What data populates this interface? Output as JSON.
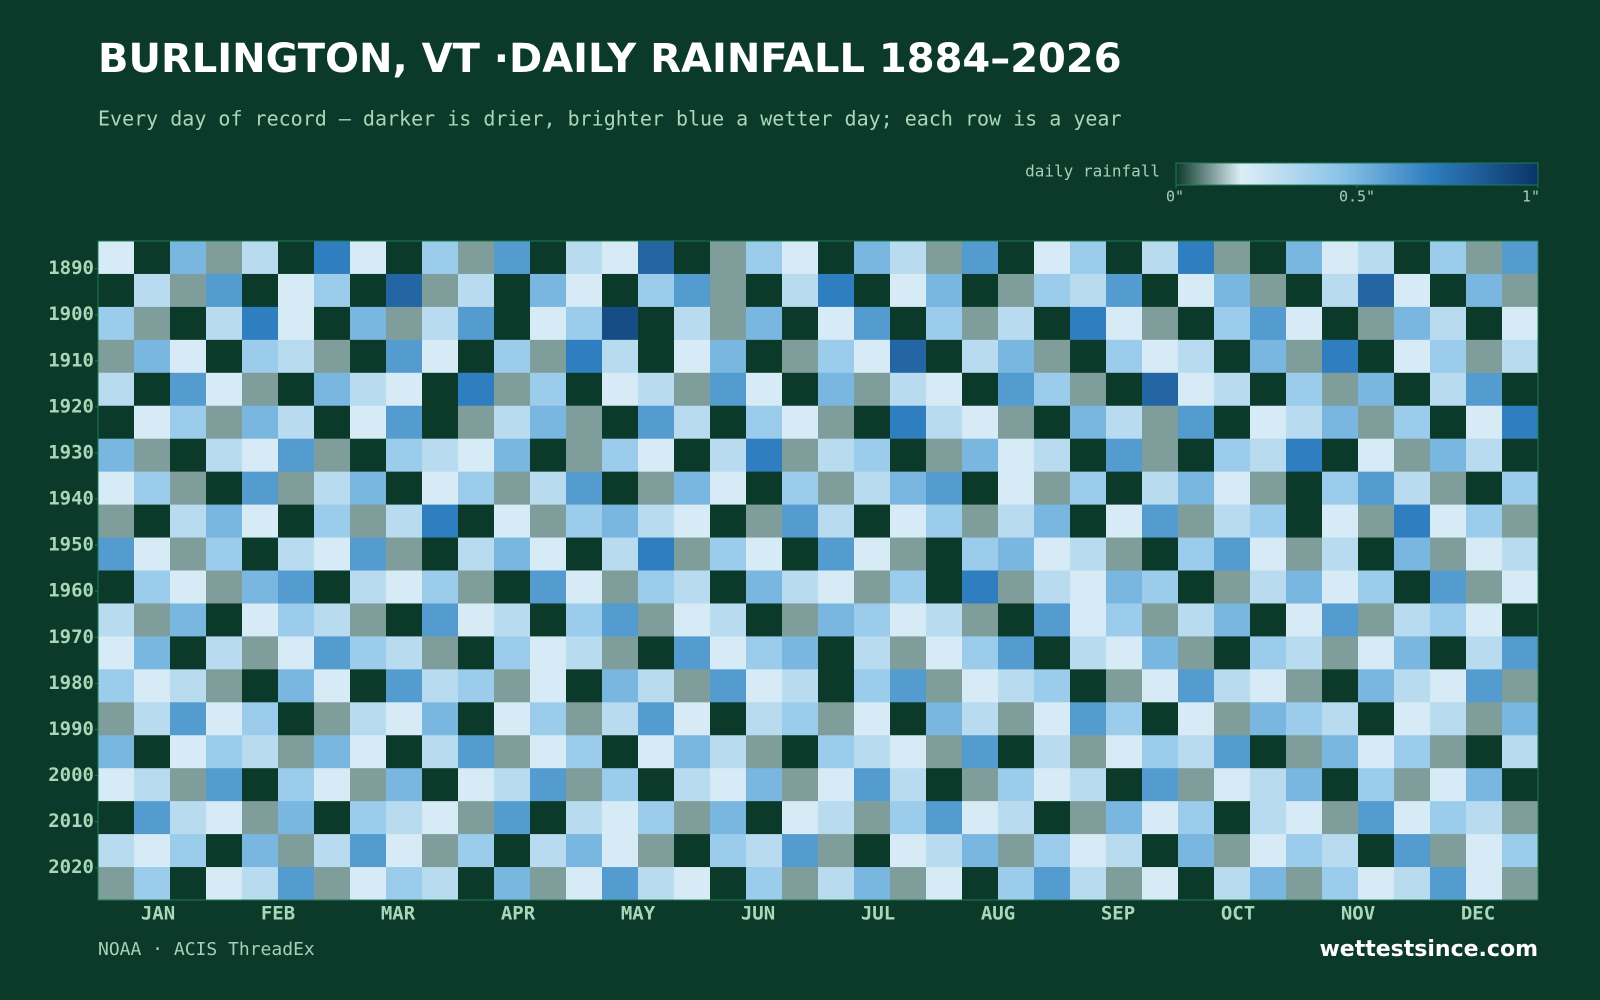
{
  "chart_data": {
    "type": "heatmap",
    "title": "BURLINGTON, VT ·DAILY RAINFALL 1884–2026",
    "subtitle": "Every day of record — darker is drier, brighter blue a wetter day; each row is a year",
    "legend_label": "daily rainfall",
    "colorscale": [
      [
        0,
        "#0b3a2a"
      ],
      [
        0.18,
        "#dceef6"
      ],
      [
        0.45,
        "#8cc4e8"
      ],
      [
        0.7,
        "#2f7fc0"
      ],
      [
        1,
        "#0a3468"
      ]
    ],
    "clim": [
      0,
      1
    ],
    "cticks": [
      {
        "value": 0,
        "label": "0\""
      },
      {
        "value": 0.5,
        "label": "0.5\""
      },
      {
        "value": 1,
        "label": "1\""
      }
    ],
    "categories": [
      "JAN",
      "FEB",
      "MAR",
      "APR",
      "MAY",
      "JUN",
      "JUL",
      "AUG",
      "SEP",
      "OCT",
      "NOV",
      "DEC"
    ],
    "ylim": [
      1884,
      2027
    ],
    "yticks": [
      1890,
      1900,
      1910,
      1920,
      1930,
      1940,
      1950,
      1960,
      1970,
      1980,
      1990,
      2000,
      2010,
      2020
    ],
    "values": [
      [
        0.2,
        0,
        0.5,
        0.1,
        0.3,
        0,
        0.7,
        0.2,
        0,
        0.4,
        0.1,
        0.6,
        0,
        0.3,
        0.2,
        0.8,
        0,
        0.1,
        0.4,
        0.2,
        0,
        0.5,
        0.3,
        0.1,
        0.6,
        0,
        0.2,
        0.4,
        0,
        0.3,
        0.7,
        0.1,
        0,
        0.5,
        0.2,
        0.3,
        0,
        0.4,
        0.1,
        0.6
      ],
      [
        0,
        0.3,
        0.1,
        0.6,
        0,
        0.2,
        0.4,
        0,
        0.8,
        0.1,
        0.3,
        0,
        0.5,
        0.2,
        0,
        0.4,
        0.6,
        0.1,
        0,
        0.3,
        0.7,
        0,
        0.2,
        0.5,
        0,
        0.1,
        0.4,
        0.3,
        0.6,
        0,
        0.2,
        0.5,
        0.1,
        0,
        0.3,
        0.8,
        0.2,
        0,
        0.5,
        0.1
      ],
      [
        0.4,
        0.1,
        0,
        0.3,
        0.7,
        0.2,
        0,
        0.5,
        0.1,
        0.3,
        0.6,
        0,
        0.2,
        0.4,
        0.9,
        0,
        0.3,
        0.1,
        0.5,
        0,
        0.2,
        0.6,
        0,
        0.4,
        0.1,
        0.3,
        0,
        0.7,
        0.2,
        0.1,
        0,
        0.4,
        0.6,
        0.2,
        0,
        0.1,
        0.5,
        0.3,
        0,
        0.2
      ],
      [
        0.1,
        0.5,
        0.2,
        0,
        0.4,
        0.3,
        0.1,
        0,
        0.6,
        0.2,
        0,
        0.4,
        0.1,
        0.7,
        0.3,
        0,
        0.2,
        0.5,
        0,
        0.1,
        0.4,
        0.2,
        0.8,
        0,
        0.3,
        0.5,
        0.1,
        0,
        0.4,
        0.2,
        0.3,
        0,
        0.5,
        0.1,
        0.7,
        0,
        0.2,
        0.4,
        0.1,
        0.3
      ],
      [
        0.3,
        0,
        0.6,
        0.2,
        0.1,
        0,
        0.5,
        0.3,
        0.2,
        0,
        0.7,
        0.1,
        0.4,
        0,
        0.2,
        0.3,
        0.1,
        0.6,
        0.2,
        0,
        0.5,
        0.1,
        0.3,
        0.2,
        0,
        0.6,
        0.4,
        0.1,
        0,
        0.8,
        0.2,
        0.3,
        0,
        0.4,
        0.1,
        0.5,
        0,
        0.3,
        0.6,
        0
      ],
      [
        0,
        0.2,
        0.4,
        0.1,
        0.5,
        0.3,
        0,
        0.2,
        0.6,
        0,
        0.1,
        0.3,
        0.5,
        0.1,
        0,
        0.6,
        0.3,
        0,
        0.4,
        0.2,
        0.1,
        0,
        0.7,
        0.3,
        0.2,
        0.1,
        0,
        0.5,
        0.3,
        0.1,
        0.6,
        0,
        0.2,
        0.3,
        0.5,
        0.1,
        0.4,
        0,
        0.2,
        0.7
      ],
      [
        0.5,
        0.1,
        0,
        0.3,
        0.2,
        0.6,
        0.1,
        0,
        0.4,
        0.3,
        0.2,
        0.5,
        0,
        0.1,
        0.4,
        0.2,
        0,
        0.3,
        0.7,
        0.1,
        0.3,
        0.4,
        0,
        0.1,
        0.5,
        0.2,
        0.3,
        0,
        0.6,
        0.1,
        0,
        0.4,
        0.3,
        0.7,
        0,
        0.2,
        0.1,
        0.5,
        0.3,
        0
      ],
      [
        0.2,
        0.4,
        0.1,
        0,
        0.6,
        0.1,
        0.3,
        0.5,
        0,
        0.2,
        0.4,
        0.1,
        0.3,
        0.6,
        0,
        0.1,
        0.5,
        0.2,
        0,
        0.4,
        0.1,
        0.3,
        0.5,
        0.6,
        0,
        0.2,
        0.1,
        0.4,
        0,
        0.3,
        0.5,
        0.2,
        0.1,
        0,
        0.4,
        0.6,
        0.3,
        0.1,
        0,
        0.4
      ],
      [
        0.1,
        0,
        0.3,
        0.5,
        0.2,
        0,
        0.4,
        0.1,
        0.3,
        0.7,
        0,
        0.2,
        0.1,
        0.4,
        0.5,
        0.3,
        0.2,
        0,
        0.1,
        0.6,
        0.3,
        0,
        0.2,
        0.4,
        0.1,
        0.3,
        0.5,
        0,
        0.2,
        0.6,
        0.1,
        0.3,
        0.4,
        0,
        0.2,
        0.1,
        0.7,
        0.2,
        0.4,
        0.1
      ],
      [
        0.6,
        0.2,
        0.1,
        0.4,
        0,
        0.3,
        0.2,
        0.6,
        0.1,
        0,
        0.3,
        0.5,
        0.2,
        0,
        0.3,
        0.7,
        0.1,
        0.4,
        0.2,
        0,
        0.6,
        0.2,
        0.1,
        0,
        0.4,
        0.5,
        0.2,
        0.3,
        0.1,
        0,
        0.4,
        0.6,
        0.2,
        0.1,
        0.3,
        0,
        0.5,
        0.1,
        0.2,
        0.3
      ],
      [
        0,
        0.4,
        0.2,
        0.1,
        0.5,
        0.6,
        0,
        0.3,
        0.2,
        0.4,
        0.1,
        0,
        0.6,
        0.2,
        0.1,
        0.4,
        0.3,
        0,
        0.5,
        0.3,
        0.2,
        0.1,
        0.4,
        0,
        0.7,
        0.1,
        0.3,
        0.2,
        0.5,
        0.4,
        0,
        0.1,
        0.3,
        0.5,
        0.2,
        0.4,
        0,
        0.6,
        0.1,
        0.2
      ],
      [
        0.3,
        0.1,
        0.5,
        0,
        0.2,
        0.4,
        0.3,
        0.1,
        0,
        0.6,
        0.2,
        0.3,
        0,
        0.4,
        0.6,
        0.1,
        0.2,
        0.3,
        0,
        0.1,
        0.5,
        0.4,
        0.2,
        0.3,
        0.1,
        0,
        0.6,
        0.2,
        0.4,
        0.1,
        0.3,
        0.5,
        0,
        0.2,
        0.6,
        0.1,
        0.3,
        0.4,
        0.2,
        0
      ],
      [
        0.2,
        0.5,
        0,
        0.3,
        0.1,
        0.2,
        0.6,
        0.4,
        0.3,
        0.1,
        0,
        0.4,
        0.2,
        0.3,
        0.1,
        0,
        0.6,
        0.2,
        0.4,
        0.5,
        0,
        0.3,
        0.1,
        0.2,
        0.4,
        0.6,
        0,
        0.3,
        0.2,
        0.5,
        0.1,
        0,
        0.4,
        0.3,
        0.1,
        0.2,
        0.5,
        0,
        0.3,
        0.6
      ],
      [
        0.4,
        0.2,
        0.3,
        0.1,
        0,
        0.5,
        0.2,
        0,
        0.6,
        0.3,
        0.4,
        0.1,
        0.2,
        0,
        0.5,
        0.3,
        0.1,
        0.6,
        0.2,
        0.3,
        0,
        0.4,
        0.6,
        0.1,
        0.2,
        0.3,
        0.4,
        0,
        0.1,
        0.2,
        0.6,
        0.3,
        0.2,
        0.1,
        0,
        0.5,
        0.3,
        0.2,
        0.6,
        0.1
      ],
      [
        0.1,
        0.3,
        0.6,
        0.2,
        0.4,
        0,
        0.1,
        0.3,
        0.2,
        0.5,
        0,
        0.2,
        0.4,
        0.1,
        0.3,
        0.6,
        0.2,
        0,
        0.3,
        0.4,
        0.1,
        0.2,
        0,
        0.5,
        0.3,
        0.1,
        0.2,
        0.6,
        0.4,
        0,
        0.2,
        0.1,
        0.5,
        0.4,
        0.3,
        0,
        0.2,
        0.3,
        0.1,
        0.5
      ],
      [
        0.5,
        0,
        0.2,
        0.4,
        0.3,
        0.1,
        0.5,
        0.2,
        0,
        0.3,
        0.6,
        0.1,
        0.2,
        0.4,
        0,
        0.2,
        0.5,
        0.3,
        0.1,
        0,
        0.4,
        0.3,
        0.2,
        0.1,
        0.6,
        0,
        0.3,
        0.1,
        0.2,
        0.4,
        0.3,
        0.6,
        0,
        0.1,
        0.5,
        0.2,
        0.4,
        0.1,
        0,
        0.3
      ],
      [
        0.2,
        0.3,
        0.1,
        0.6,
        0,
        0.4,
        0.2,
        0.1,
        0.5,
        0,
        0.2,
        0.3,
        0.6,
        0.1,
        0.4,
        0,
        0.3,
        0.2,
        0.5,
        0.1,
        0.2,
        0.6,
        0.3,
        0,
        0.1,
        0.4,
        0.2,
        0.3,
        0,
        0.6,
        0.1,
        0.2,
        0.3,
        0.5,
        0,
        0.4,
        0.1,
        0.2,
        0.5,
        0
      ],
      [
        0,
        0.6,
        0.3,
        0.2,
        0.1,
        0.5,
        0,
        0.4,
        0.3,
        0.2,
        0.1,
        0.6,
        0,
        0.3,
        0.2,
        0.4,
        0.1,
        0.5,
        0,
        0.2,
        0.3,
        0.1,
        0.4,
        0.6,
        0.2,
        0.3,
        0,
        0.1,
        0.5,
        0.2,
        0.4,
        0,
        0.3,
        0.2,
        0.1,
        0.6,
        0.2,
        0.4,
        0.3,
        0.1
      ],
      [
        0.3,
        0.2,
        0.4,
        0,
        0.5,
        0.1,
        0.3,
        0.6,
        0.2,
        0.1,
        0.4,
        0,
        0.3,
        0.5,
        0.2,
        0.1,
        0,
        0.4,
        0.3,
        0.6,
        0.1,
        0,
        0.2,
        0.3,
        0.5,
        0.1,
        0.4,
        0.2,
        0.3,
        0,
        0.5,
        0.1,
        0.2,
        0.4,
        0.3,
        0,
        0.6,
        0.1,
        0.2,
        0.4
      ],
      [
        0.1,
        0.4,
        0,
        0.2,
        0.3,
        0.6,
        0.1,
        0.2,
        0.4,
        0.3,
        0,
        0.5,
        0.1,
        0.2,
        0.6,
        0.3,
        0.2,
        0,
        0.4,
        0.1,
        0.3,
        0.5,
        0.1,
        0.2,
        0,
        0.4,
        0.6,
        0.3,
        0.1,
        0.2,
        0,
        0.3,
        0.5,
        0.1,
        0.4,
        0.2,
        0.3,
        0.6,
        0.2,
        0.1
      ]
    ],
    "source": "NOAA · ACIS ThreadEx",
    "brand": "wettestsince.com"
  }
}
